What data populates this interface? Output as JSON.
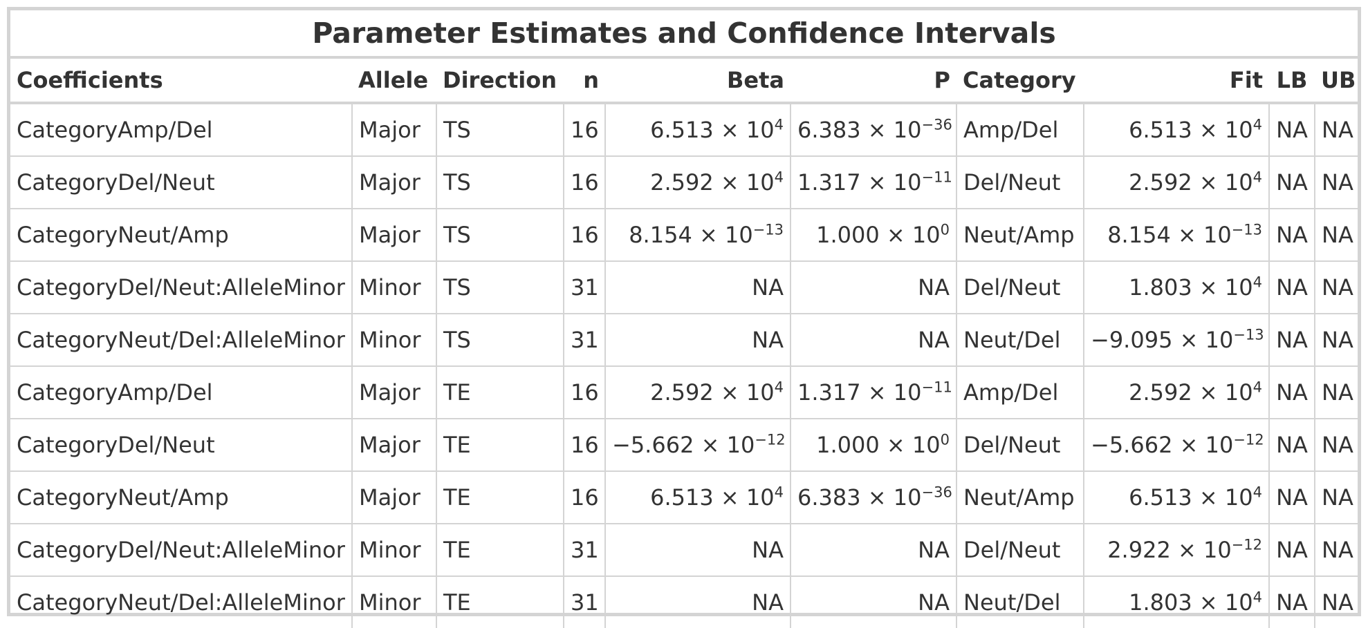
{
  "table": {
    "title": "Parameter Estimates and Confidence Intervals",
    "columns": [
      {
        "key": "coef",
        "label": "Coefficients",
        "align": "l"
      },
      {
        "key": "allele",
        "label": "Allele",
        "align": "l"
      },
      {
        "key": "direction",
        "label": "Direction",
        "align": "l"
      },
      {
        "key": "n",
        "label": "n",
        "align": "r"
      },
      {
        "key": "beta",
        "label": "Beta",
        "align": "r"
      },
      {
        "key": "p",
        "label": "P",
        "align": "r"
      },
      {
        "key": "category",
        "label": "Category",
        "align": "l"
      },
      {
        "key": "fit",
        "label": "Fit",
        "align": "r"
      },
      {
        "key": "lb",
        "label": "LB",
        "align": "c"
      },
      {
        "key": "ub",
        "label": "UB",
        "align": "c"
      }
    ],
    "rows": [
      {
        "coef": "CategoryAmp/Del",
        "allele": "Major",
        "direction": "TS",
        "n": "16",
        "beta": {
          "m": "6.513",
          "e": "4"
        },
        "p": {
          "m": "6.383",
          "e": "−36"
        },
        "category": "Amp/Del",
        "fit": {
          "m": "6.513",
          "e": "4"
        },
        "lb": "NA",
        "ub": "NA"
      },
      {
        "coef": "CategoryDel/Neut",
        "allele": "Major",
        "direction": "TS",
        "n": "16",
        "beta": {
          "m": "2.592",
          "e": "4"
        },
        "p": {
          "m": "1.317",
          "e": "−11"
        },
        "category": "Del/Neut",
        "fit": {
          "m": "2.592",
          "e": "4"
        },
        "lb": "NA",
        "ub": "NA"
      },
      {
        "coef": "CategoryNeut/Amp",
        "allele": "Major",
        "direction": "TS",
        "n": "16",
        "beta": {
          "m": "8.154",
          "e": "−13"
        },
        "p": {
          "m": "1.000",
          "e": "0"
        },
        "category": "Neut/Amp",
        "fit": {
          "m": "8.154",
          "e": "−13"
        },
        "lb": "NA",
        "ub": "NA"
      },
      {
        "coef": "CategoryDel/Neut:AlleleMinor",
        "allele": "Minor",
        "direction": "TS",
        "n": "31",
        "beta": "NA",
        "p": "NA",
        "category": "Del/Neut",
        "fit": {
          "m": "1.803",
          "e": "4"
        },
        "lb": "NA",
        "ub": "NA"
      },
      {
        "coef": "CategoryNeut/Del:AlleleMinor",
        "allele": "Minor",
        "direction": "TS",
        "n": "31",
        "beta": "NA",
        "p": "NA",
        "category": "Neut/Del",
        "fit": {
          "m": "−9.095",
          "e": "−13"
        },
        "lb": "NA",
        "ub": "NA"
      },
      {
        "coef": "CategoryAmp/Del",
        "allele": "Major",
        "direction": "TE",
        "n": "16",
        "beta": {
          "m": "2.592",
          "e": "4"
        },
        "p": {
          "m": "1.317",
          "e": "−11"
        },
        "category": "Amp/Del",
        "fit": {
          "m": "2.592",
          "e": "4"
        },
        "lb": "NA",
        "ub": "NA"
      },
      {
        "coef": "CategoryDel/Neut",
        "allele": "Major",
        "direction": "TE",
        "n": "16",
        "beta": {
          "m": "−5.662",
          "e": "−12"
        },
        "p": {
          "m": "1.000",
          "e": "0"
        },
        "category": "Del/Neut",
        "fit": {
          "m": "−5.662",
          "e": "−12"
        },
        "lb": "NA",
        "ub": "NA"
      },
      {
        "coef": "CategoryNeut/Amp",
        "allele": "Major",
        "direction": "TE",
        "n": "16",
        "beta": {
          "m": "6.513",
          "e": "4"
        },
        "p": {
          "m": "6.383",
          "e": "−36"
        },
        "category": "Neut/Amp",
        "fit": {
          "m": "6.513",
          "e": "4"
        },
        "lb": "NA",
        "ub": "NA"
      },
      {
        "coef": "CategoryDel/Neut:AlleleMinor",
        "allele": "Minor",
        "direction": "TE",
        "n": "31",
        "beta": "NA",
        "p": "NA",
        "category": "Del/Neut",
        "fit": {
          "m": "2.922",
          "e": "−12"
        },
        "lb": "NA",
        "ub": "NA"
      },
      {
        "coef": "CategoryNeut/Del:AlleleMinor",
        "allele": "Minor",
        "direction": "TE",
        "n": "31",
        "beta": "NA",
        "p": "NA",
        "category": "Neut/Del",
        "fit": {
          "m": "1.803",
          "e": "4"
        },
        "lb": "NA",
        "ub": "NA"
      }
    ]
  }
}
